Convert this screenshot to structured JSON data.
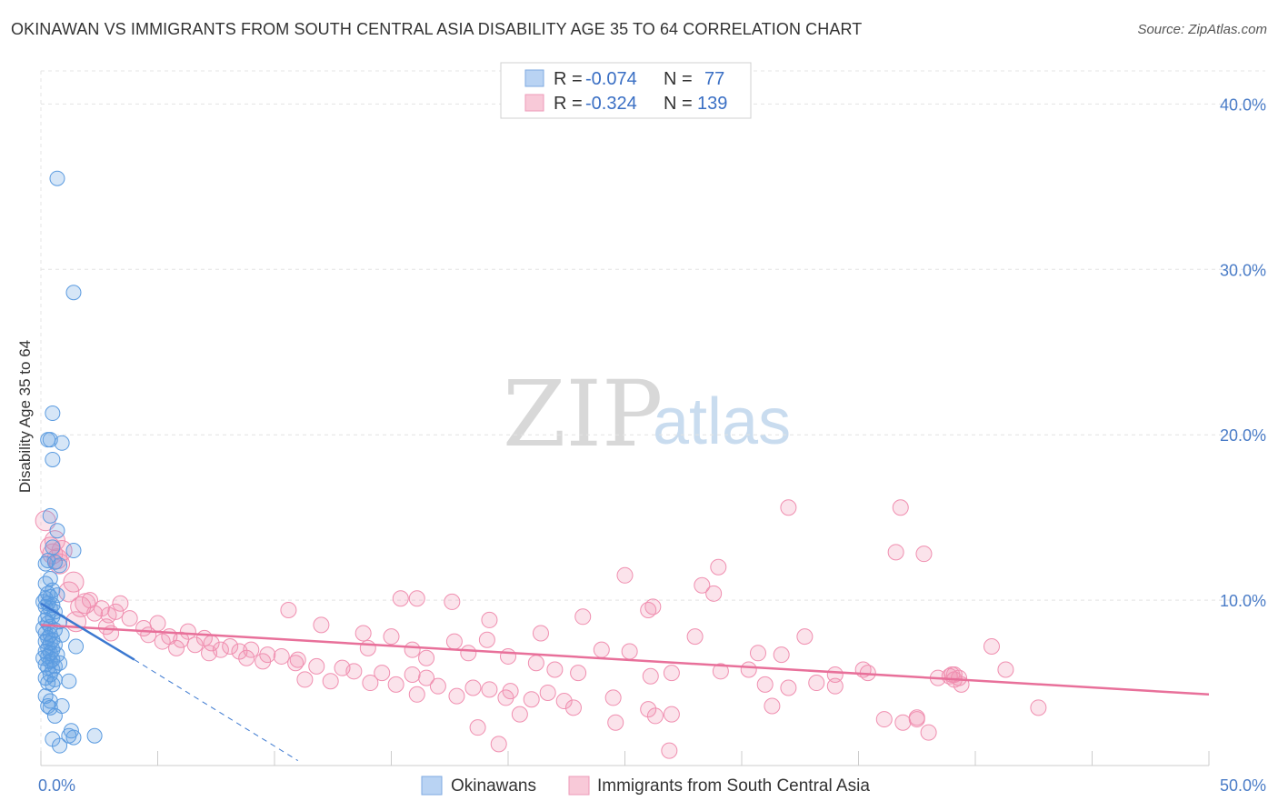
{
  "title": "OKINAWAN VS IMMIGRANTS FROM SOUTH CENTRAL ASIA DISABILITY AGE 35 TO 64 CORRELATION CHART",
  "source": "Source: ZipAtlas.com",
  "watermark": {
    "zip": "ZIP",
    "atlas": "atlas"
  },
  "legend": {
    "r_label": "R =",
    "n_label": "N =",
    "rows": [
      {
        "r": "-0.074",
        "n": "77"
      },
      {
        "r": "-0.324",
        "n": "139"
      }
    ]
  },
  "chart_data": {
    "type": "scatter",
    "title": "OKINAWAN VS IMMIGRANTS FROM SOUTH CENTRAL ASIA DISABILITY AGE 35 TO 64 CORRELATION CHART",
    "xlabel": "",
    "ylabel": "Disability Age 35 to 64",
    "xlim": [
      0,
      50
    ],
    "ylim": [
      0,
      42
    ],
    "x_tick_labels": [
      "0.0%",
      "50.0%"
    ],
    "y_tick_labels": [
      "10.0%",
      "20.0%",
      "30.0%",
      "40.0%"
    ],
    "y_ticks": [
      10,
      20,
      30,
      40
    ],
    "grid": true,
    "colors": {
      "okinawans": "#5b9be0",
      "immigrants": "#f08fb0",
      "okinawans_line": "#3b78d0",
      "immigrants_line": "#e8709a"
    },
    "series": [
      {
        "name": "Okinawans",
        "trend": {
          "x0": 0.0,
          "y0": 9.8,
          "x1": 4.0,
          "y1": 6.4,
          "dash_to_x": 11.0,
          "dash_to_y": 0.3
        },
        "points": [
          [
            0.7,
            35.5
          ],
          [
            1.4,
            28.6
          ],
          [
            0.5,
            21.3
          ],
          [
            0.4,
            19.7
          ],
          [
            0.3,
            19.7
          ],
          [
            0.9,
            19.5
          ],
          [
            0.5,
            18.5
          ],
          [
            0.4,
            15.1
          ],
          [
            0.7,
            14.2
          ],
          [
            0.5,
            13.2
          ],
          [
            1.4,
            13.0
          ],
          [
            0.3,
            12.4
          ],
          [
            0.6,
            12.3
          ],
          [
            0.2,
            12.2
          ],
          [
            0.8,
            12.1
          ],
          [
            0.4,
            11.3
          ],
          [
            0.2,
            11.0
          ],
          [
            0.5,
            10.6
          ],
          [
            0.3,
            10.4
          ],
          [
            0.7,
            10.3
          ],
          [
            0.4,
            10.2
          ],
          [
            0.2,
            10.1
          ],
          [
            0.1,
            9.9
          ],
          [
            0.3,
            9.8
          ],
          [
            0.5,
            9.7
          ],
          [
            0.2,
            9.6
          ],
          [
            0.4,
            9.5
          ],
          [
            0.6,
            9.3
          ],
          [
            0.3,
            9.1
          ],
          [
            0.5,
            9.0
          ],
          [
            0.2,
            8.8
          ],
          [
            0.8,
            8.7
          ],
          [
            0.3,
            8.6
          ],
          [
            0.4,
            8.4
          ],
          [
            0.1,
            8.3
          ],
          [
            0.6,
            8.2
          ],
          [
            0.2,
            8.0
          ],
          [
            0.4,
            7.9
          ],
          [
            0.9,
            7.9
          ],
          [
            0.3,
            7.7
          ],
          [
            0.5,
            7.6
          ],
          [
            0.2,
            7.5
          ],
          [
            0.4,
            7.4
          ],
          [
            0.6,
            7.3
          ],
          [
            1.5,
            7.2
          ],
          [
            0.3,
            7.1
          ],
          [
            0.5,
            7.0
          ],
          [
            0.2,
            6.9
          ],
          [
            0.4,
            6.8
          ],
          [
            0.7,
            6.7
          ],
          [
            0.3,
            6.6
          ],
          [
            0.1,
            6.5
          ],
          [
            0.5,
            6.4
          ],
          [
            0.4,
            6.3
          ],
          [
            0.8,
            6.2
          ],
          [
            0.2,
            6.1
          ],
          [
            0.6,
            6.0
          ],
          [
            0.3,
            5.9
          ],
          [
            0.5,
            5.8
          ],
          [
            0.4,
            5.5
          ],
          [
            0.2,
            5.3
          ],
          [
            0.6,
            5.2
          ],
          [
            1.2,
            5.1
          ],
          [
            0.3,
            5.0
          ],
          [
            0.5,
            4.9
          ],
          [
            0.2,
            4.2
          ],
          [
            0.4,
            3.9
          ],
          [
            0.3,
            3.6
          ],
          [
            0.9,
            3.6
          ],
          [
            0.6,
            3.0
          ],
          [
            1.3,
            2.1
          ],
          [
            2.3,
            1.8
          ],
          [
            1.2,
            1.8
          ],
          [
            1.4,
            1.7
          ],
          [
            0.5,
            1.6
          ],
          [
            0.8,
            1.2
          ],
          [
            0.4,
            3.5
          ]
        ]
      },
      {
        "name": "Immigrants from South Central Asia",
        "trend": {
          "x0": 0.0,
          "y0": 8.5,
          "x1": 50.0,
          "y1": 4.3
        },
        "points": [
          [
            0.2,
            14.8
          ],
          [
            0.6,
            13.6
          ],
          [
            0.4,
            13.2
          ],
          [
            0.9,
            13.0
          ],
          [
            0.5,
            12.8
          ],
          [
            0.7,
            12.5
          ],
          [
            0.8,
            12.2
          ],
          [
            1.4,
            11.1
          ],
          [
            1.2,
            10.5
          ],
          [
            2.1,
            10.0
          ],
          [
            1.9,
            9.8
          ],
          [
            3.4,
            9.8
          ],
          [
            1.7,
            9.6
          ],
          [
            2.6,
            9.5
          ],
          [
            3.2,
            9.3
          ],
          [
            2.3,
            9.2
          ],
          [
            2.9,
            9.1
          ],
          [
            3.8,
            8.9
          ],
          [
            1.5,
            8.7
          ],
          [
            5.0,
            8.6
          ],
          [
            2.8,
            8.4
          ],
          [
            4.4,
            8.3
          ],
          [
            3.0,
            8.0
          ],
          [
            6.3,
            8.1
          ],
          [
            4.6,
            7.9
          ],
          [
            5.5,
            7.8
          ],
          [
            7.0,
            7.7
          ],
          [
            6.0,
            7.6
          ],
          [
            5.2,
            7.5
          ],
          [
            7.3,
            7.4
          ],
          [
            6.6,
            7.3
          ],
          [
            8.1,
            7.2
          ],
          [
            5.8,
            7.1
          ],
          [
            7.7,
            7.0
          ],
          [
            9.0,
            7.0
          ],
          [
            8.5,
            6.9
          ],
          [
            7.2,
            6.8
          ],
          [
            9.7,
            6.7
          ],
          [
            10.3,
            6.6
          ],
          [
            8.8,
            6.5
          ],
          [
            11.0,
            6.4
          ],
          [
            9.5,
            6.3
          ],
          [
            10.9,
            6.2
          ],
          [
            11.8,
            6.0
          ],
          [
            12.9,
            5.9
          ],
          [
            13.4,
            5.7
          ],
          [
            14.6,
            5.6
          ],
          [
            15.9,
            5.5
          ],
          [
            16.5,
            5.3
          ],
          [
            11.3,
            5.2
          ],
          [
            12.4,
            5.1
          ],
          [
            14.1,
            5.0
          ],
          [
            15.2,
            4.9
          ],
          [
            17.0,
            4.8
          ],
          [
            18.5,
            4.7
          ],
          [
            19.2,
            4.6
          ],
          [
            20.1,
            4.5
          ],
          [
            21.7,
            4.4
          ],
          [
            16.1,
            4.3
          ],
          [
            17.8,
            4.2
          ],
          [
            19.9,
            4.1
          ],
          [
            21.0,
            4.0
          ],
          [
            22.4,
            3.9
          ],
          [
            10.6,
            9.4
          ],
          [
            12.0,
            8.5
          ],
          [
            13.8,
            8.0
          ],
          [
            15.0,
            7.8
          ],
          [
            14.0,
            7.1
          ],
          [
            15.9,
            7.0
          ],
          [
            16.5,
            6.5
          ],
          [
            17.7,
            7.5
          ],
          [
            18.3,
            6.8
          ],
          [
            19.1,
            7.6
          ],
          [
            20.0,
            6.6
          ],
          [
            21.2,
            6.2
          ],
          [
            22.0,
            5.8
          ],
          [
            23.0,
            5.6
          ],
          [
            24.0,
            7.0
          ],
          [
            25.2,
            6.9
          ],
          [
            26.1,
            5.4
          ],
          [
            27.0,
            5.6
          ],
          [
            28.0,
            7.8
          ],
          [
            29.1,
            5.7
          ],
          [
            30.3,
            5.8
          ],
          [
            31.0,
            4.9
          ],
          [
            32.0,
            4.7
          ],
          [
            33.2,
            5.0
          ],
          [
            34.0,
            4.8
          ],
          [
            16.1,
            10.1
          ],
          [
            15.4,
            10.1
          ],
          [
            17.6,
            9.9
          ],
          [
            19.2,
            8.8
          ],
          [
            21.4,
            8.0
          ],
          [
            23.2,
            9.0
          ],
          [
            25.0,
            11.5
          ],
          [
            26.0,
            9.4
          ],
          [
            26.2,
            9.6
          ],
          [
            28.3,
            10.9
          ],
          [
            29.0,
            12.0
          ],
          [
            28.8,
            10.4
          ],
          [
            30.7,
            6.8
          ],
          [
            31.7,
            6.7
          ],
          [
            32.0,
            15.6
          ],
          [
            32.7,
            7.8
          ],
          [
            34.0,
            5.5
          ],
          [
            35.2,
            5.8
          ],
          [
            35.4,
            5.6
          ],
          [
            36.1,
            2.8
          ],
          [
            36.6,
            12.9
          ],
          [
            36.8,
            15.6
          ],
          [
            37.5,
            2.8
          ],
          [
            37.5,
            2.9
          ],
          [
            36.9,
            2.6
          ],
          [
            37.8,
            12.8
          ],
          [
            38.0,
            2.0
          ],
          [
            38.4,
            5.3
          ],
          [
            38.9,
            5.4
          ],
          [
            39.1,
            5.5
          ],
          [
            39.3,
            5.3
          ],
          [
            39.0,
            5.5
          ],
          [
            39.4,
            4.9
          ],
          [
            39.1,
            5.2
          ],
          [
            40.7,
            7.2
          ],
          [
            41.3,
            5.8
          ],
          [
            42.7,
            3.5
          ],
          [
            31.3,
            3.6
          ],
          [
            26.0,
            3.4
          ],
          [
            24.5,
            4.1
          ],
          [
            22.8,
            3.5
          ],
          [
            18.7,
            2.3
          ],
          [
            20.5,
            3.1
          ],
          [
            19.6,
            1.3
          ],
          [
            26.3,
            3.0
          ],
          [
            27.0,
            3.1
          ],
          [
            26.9,
            0.9
          ],
          [
            24.6,
            2.6
          ]
        ]
      }
    ]
  }
}
